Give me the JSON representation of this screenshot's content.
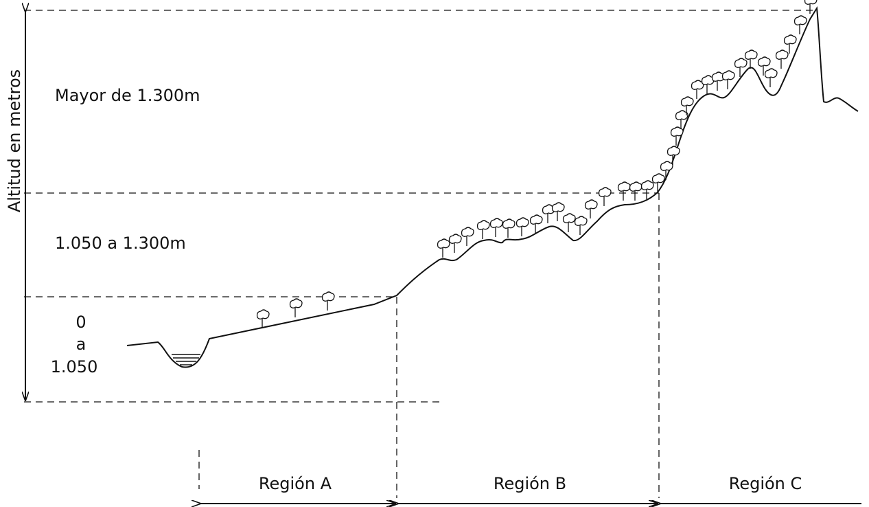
{
  "axis_label": "Altitud en metros",
  "zones": [
    {
      "lines": [
        "Mayor de 1.300m"
      ]
    },
    {
      "lines": [
        "1.050 a 1.300m"
      ]
    },
    {
      "lines": [
        "0",
        "a",
        "1.050"
      ]
    }
  ],
  "regions": [
    "Región A",
    "Región B",
    "Región C"
  ]
}
